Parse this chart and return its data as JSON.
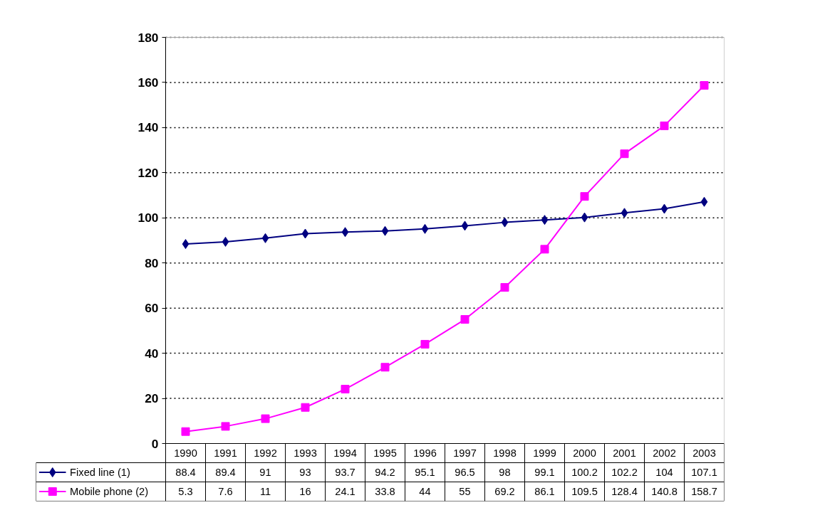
{
  "chart_data": {
    "type": "line",
    "categories": [
      "1990",
      "1991",
      "1992",
      "1993",
      "1994",
      "1995",
      "1996",
      "1997",
      "1998",
      "1999",
      "2000",
      "2001",
      "2002",
      "2003"
    ],
    "series": [
      {
        "name": "Fixed line (1)",
        "color": "#000080",
        "marker": "diamond",
        "values": [
          88.4,
          89.4,
          91,
          93,
          93.7,
          94.2,
          95.1,
          96.5,
          98,
          99.1,
          100.2,
          102.2,
          104,
          107.1
        ]
      },
      {
        "name": "Mobile phone (2)",
        "color": "#ff00ff",
        "marker": "square",
        "values": [
          5.3,
          7.6,
          11,
          16,
          24.1,
          33.8,
          44,
          55,
          69.2,
          86.1,
          109.5,
          128.4,
          140.8,
          158.7
        ]
      }
    ],
    "ylim": [
      0,
      180
    ],
    "yticks": [
      0,
      20,
      40,
      60,
      80,
      100,
      120,
      140,
      160,
      180
    ],
    "grid": "y",
    "line_style": "solid",
    "legend": "bottom",
    "data_labels": true
  }
}
